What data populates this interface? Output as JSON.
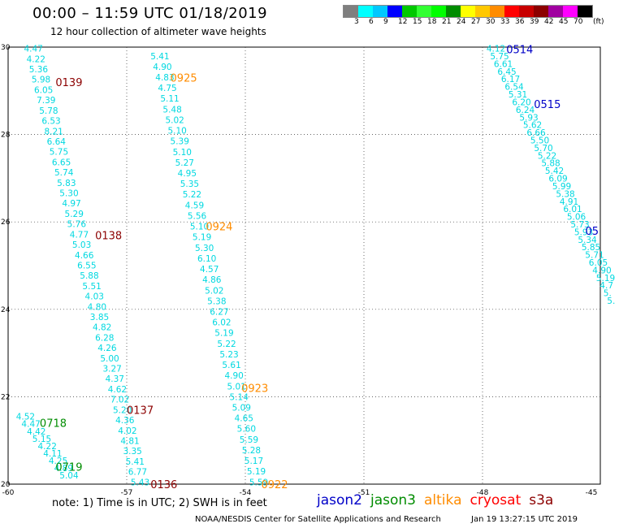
{
  "title": "00:00 – 11:59 UTC 01/18/2019",
  "subtitle": "12 hour collection of altimeter wave heights",
  "color_scale": {
    "unit_label": "(ft)",
    "labels": [
      "3",
      "6",
      "9",
      "12",
      "15",
      "18",
      "21",
      "24",
      "27",
      "30",
      "33",
      "36",
      "39",
      "42",
      "45",
      "70"
    ],
    "colors": [
      "#7f7f7f",
      "#00ffff",
      "#00c8ff",
      "#0000ff",
      "#00c800",
      "#32ff32",
      "#00ff00",
      "#008c00",
      "#ffff00",
      "#ffc800",
      "#ff8c00",
      "#ff0000",
      "#c80000",
      "#8c0000",
      "#a000a0",
      "#ff00ff",
      "#000000"
    ]
  },
  "axes": {
    "x_ticks": [
      "-60",
      "-57",
      "-54",
      "-51",
      "-48",
      "-45"
    ],
    "y_ticks": [
      "30",
      "28",
      "26",
      "24",
      "22",
      "20"
    ],
    "lon_range": [
      -60,
      -45
    ],
    "lat_range": [
      20,
      30
    ]
  },
  "satellites": [
    {
      "name": "jason2",
      "color": "#0000c8"
    },
    {
      "name": "jason3",
      "color": "#008c00"
    },
    {
      "name": "altika",
      "color": "#ff8c00"
    },
    {
      "name": "cryosat",
      "color": "#ff0000"
    },
    {
      "name": "s3a",
      "color": "#8c0000"
    }
  ],
  "note": "note: 1) Time is in UTC; 2) SWH is in feet",
  "footer_left": "NOAA/NESDIS Center for Satellite Applications and Research",
  "footer_right": "Jan 19 13:27:15 UTC 2019",
  "tracks": [
    {
      "id": "t1",
      "color": "#00d8e0",
      "values": [
        "4.47",
        "4.22",
        "5.36",
        "5.98",
        "6.05",
        "7.39",
        "5.78",
        "6.53",
        "8.21",
        "6.64",
        "5.75",
        "6.65",
        "5.74",
        "5.83",
        "5.30",
        "4.97",
        "5.29",
        "5.76",
        "4.77",
        "5.03",
        "4.66",
        "6.55",
        "5.88",
        "5.51",
        "4.03",
        "4.80",
        "3.85",
        "4.82",
        "6.28",
        "4.26",
        "5.00",
        "3.27",
        "4.37",
        "4.62",
        "7.02",
        "5.20",
        "4.36",
        "4.02",
        "4.81",
        "3.35",
        "5.41",
        "6.77",
        "5.43"
      ]
    },
    {
      "id": "t2",
      "color": "#00d8e0",
      "values": [
        "5.41",
        "4.90",
        "4.83",
        "4.75",
        "5.11",
        "5.48",
        "5.02",
        "5.10",
        "5.39",
        "5.10",
        "5.27",
        "4.95",
        "5.35",
        "5.22",
        "4.59",
        "5.56",
        "5.10",
        "5.19",
        "5.30",
        "6.10",
        "4.57",
        "4.86",
        "5.02",
        "5.38",
        "6.27",
        "6.02",
        "5.19",
        "5.22",
        "5.23",
        "5.61",
        "4.90",
        "5.01",
        "5.14",
        "5.09",
        "4.65",
        "5.60",
        "5.59",
        "5.28",
        "5.17",
        "5.19",
        "5.59"
      ]
    },
    {
      "id": "t3",
      "color": "#00d8e0",
      "values": [
        "4.52",
        "4.47",
        "4.42",
        "5.15",
        "4.22",
        "4.11",
        "4.25",
        "4.89",
        "5.04"
      ]
    },
    {
      "id": "t4",
      "color": "#00d8e0",
      "values": [
        "4.12",
        "5.75",
        "6.61",
        "6.45",
        "6.17",
        "6.54",
        "5.31",
        "6.20",
        "6.24",
        "5.93",
        "5.62",
        "6.66",
        "5.50",
        "5.70",
        "5.22",
        "5.88",
        "5.42",
        "6.09",
        "5.99",
        "5.38",
        "4.91",
        "6.01",
        "5.06",
        "5.73",
        "5.93",
        "5.34",
        "5.85",
        "5.71",
        "6.05",
        "4.90",
        "5.19",
        "4.7",
        "5.",
        "5."
      ]
    }
  ],
  "time_labels": [
    {
      "text": "0139",
      "color": "#8c0000",
      "lon": -58.8,
      "lat": 29.2
    },
    {
      "text": "0138",
      "color": "#8c0000",
      "lon": -57.8,
      "lat": 25.7
    },
    {
      "text": "0137",
      "color": "#8c0000",
      "lon": -57.0,
      "lat": 21.7
    },
    {
      "text": "0136",
      "color": "#8c0000",
      "lon": -56.4,
      "lat": 20.0
    },
    {
      "text": "0925",
      "color": "#ff8c00",
      "lon": -55.9,
      "lat": 29.3
    },
    {
      "text": "0924",
      "color": "#ff8c00",
      "lon": -55.0,
      "lat": 25.9
    },
    {
      "text": "0923",
      "color": "#ff8c00",
      "lon": -54.1,
      "lat": 22.2
    },
    {
      "text": "0922",
      "color": "#ff8c00",
      "lon": -53.6,
      "lat": 20.0
    },
    {
      "text": "0718",
      "color": "#008c00",
      "lon": -59.2,
      "lat": 21.4
    },
    {
      "text": "0719",
      "color": "#008c00",
      "lon": -58.8,
      "lat": 20.4
    },
    {
      "text": "0514",
      "color": "#0000c8",
      "lon": -47.4,
      "lat": 29.95
    },
    {
      "text": "0515",
      "color": "#0000c8",
      "lon": -46.7,
      "lat": 28.7
    },
    {
      "text": "05",
      "color": "#0000c8",
      "lon": -45.4,
      "lat": 25.8
    }
  ]
}
